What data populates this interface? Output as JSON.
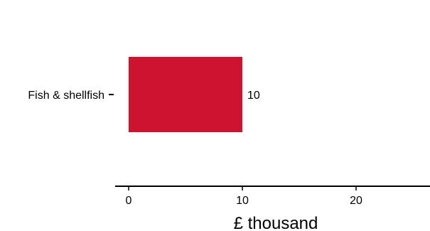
{
  "chart_data": {
    "type": "bar",
    "orientation": "horizontal",
    "title": "",
    "xlabel": "£ thousand",
    "ylabel": "",
    "categories": [
      "Fish & shellfish"
    ],
    "values": [
      10
    ],
    "data_labels": [
      "10"
    ],
    "xlim": [
      0,
      26.5
    ],
    "xticks": [
      0,
      10,
      20
    ],
    "xtick_labels": [
      "0",
      "10",
      "20"
    ],
    "grid": false,
    "legend": "none",
    "bar_color": "#CE1330",
    "axis_color": "#000000"
  }
}
